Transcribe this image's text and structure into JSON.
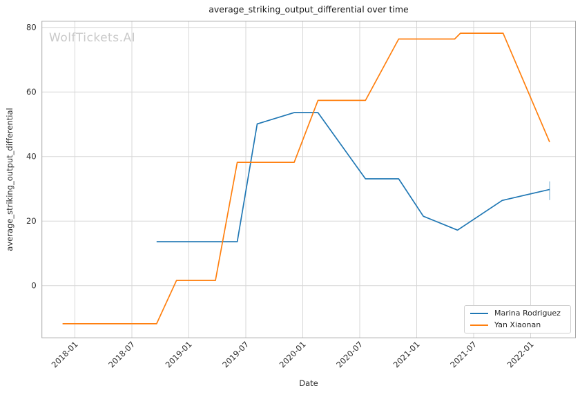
{
  "chart": {
    "title": "average_striking_output_differential over time",
    "xlabel": "Date",
    "ylabel": "average_striking_output_differential",
    "watermark": "WolfTickets.AI"
  },
  "chart_data": {
    "type": "line",
    "title": "average_striking_output_differential over time",
    "xlabel": "Date",
    "ylabel": "average_striking_output_differential",
    "grid": true,
    "legend_position": "lower right",
    "x_axis": {
      "unit": "months since 2018-01",
      "tick_labels": [
        "2018-01",
        "2018-07",
        "2019-01",
        "2019-07",
        "2020-01",
        "2020-07",
        "2021-01",
        "2021-07",
        "2022-01"
      ],
      "tick_month_offsets": [
        0,
        6,
        12,
        18,
        24,
        30,
        36,
        42,
        48
      ]
    },
    "y_axis": {
      "ticks": [
        0,
        20,
        40,
        60,
        80
      ],
      "range": [
        -16,
        82
      ]
    },
    "style": {
      "grid_color": "#d7d7d7",
      "spine_color": "#a6a6a6",
      "tick_label_color": "#2b2b2b",
      "background": "#ffffff",
      "watermark_color": "#c9c9c9"
    },
    "series": [
      {
        "name": "Marina Rodriguez",
        "color": "#1f77b4",
        "points": [
          {
            "date": "2018-09",
            "m": 8.6,
            "value": 13.6
          },
          {
            "date": "2019-06",
            "m": 17.1,
            "value": 13.6
          },
          {
            "date": "2019-08",
            "m": 19.2,
            "value": 50.1
          },
          {
            "date": "2019-12",
            "m": 23.1,
            "value": 53.6
          },
          {
            "date": "2020-02",
            "m": 25.6,
            "value": 53.6
          },
          {
            "date": "2020-07",
            "m": 30.6,
            "value": 33.1
          },
          {
            "date": "2020-11",
            "m": 34.1,
            "value": 33.1
          },
          {
            "date": "2021-01",
            "m": 36.7,
            "value": 21.5
          },
          {
            "date": "2021-05",
            "m": 40.3,
            "value": 17.2
          },
          {
            "date": "2021-10",
            "m": 45.0,
            "value": 26.4
          },
          {
            "date": "2022-03",
            "m": 50.0,
            "value": 29.8
          }
        ],
        "final_error_bar": {
          "date": "2022-03",
          "m": 50.0,
          "value_low": 26.5,
          "value_high": 32.3,
          "color": "#a9cce3"
        }
      },
      {
        "name": "Yan Xiaonan",
        "color": "#ff7f0e",
        "points": [
          {
            "date": "2017-11",
            "m": -1.3,
            "value": -11.8
          },
          {
            "date": "2018-09",
            "m": 8.6,
            "value": -11.8
          },
          {
            "date": "2018-11",
            "m": 10.7,
            "value": 1.6
          },
          {
            "date": "2019-03",
            "m": 14.8,
            "value": 1.6
          },
          {
            "date": "2019-06",
            "m": 17.1,
            "value": 38.2
          },
          {
            "date": "2019-12",
            "m": 23.1,
            "value": 38.2
          },
          {
            "date": "2020-02",
            "m": 25.6,
            "value": 57.4
          },
          {
            "date": "2020-07",
            "m": 30.6,
            "value": 57.4
          },
          {
            "date": "2020-11",
            "m": 34.1,
            "value": 76.4
          },
          {
            "date": "2021-05",
            "m": 40.0,
            "value": 76.4
          },
          {
            "date": "2021-05",
            "m": 40.6,
            "value": 78.2
          },
          {
            "date": "2021-10",
            "m": 45.1,
            "value": 78.2
          },
          {
            "date": "2022-03",
            "m": 50.0,
            "value": 44.5
          }
        ]
      }
    ]
  }
}
